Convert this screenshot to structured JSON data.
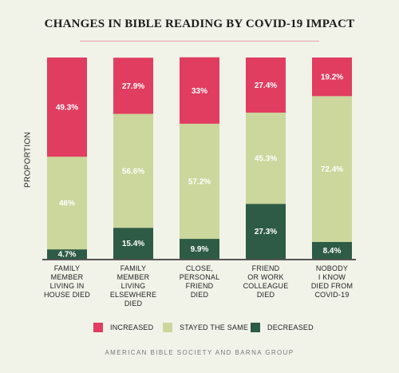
{
  "colors": {
    "increased": "#e13d60",
    "stayed": "#cbd79c",
    "decreased": "#2e5b45",
    "baseline": "#555555"
  },
  "chart_data": {
    "type": "bar",
    "stacked": true,
    "title": "CHANGES IN BIBLE READING BY COVID-19 IMPACT",
    "ylabel": "PROPORTION",
    "xlabel": "",
    "ylim": [
      0,
      100
    ],
    "grid": false,
    "legend_position": "bottom",
    "categories": [
      "FAMILY\nMEMBER\nLIVING IN\nHOUSE DIED",
      "FAMILY\nMEMBER\nLIVING\nELSEWHERE\nDIED",
      "CLOSE,\nPERSONAL\nFRIEND\nDIED",
      "FRIEND\nOR WORK\nCOLLEAGUE\nDIED",
      "NOBODY\nI KNOW\nDIED FROM\nCOVID-19"
    ],
    "series": [
      {
        "name": "DECREASED",
        "color_key": "decreased",
        "values": [
          4.7,
          15.4,
          9.9,
          27.3,
          8.4
        ],
        "labels": [
          "4.7%",
          "15.4%",
          "9.9%",
          "27.3%",
          "8.4%"
        ]
      },
      {
        "name": "STAYED THE SAME",
        "color_key": "stayed",
        "values": [
          46,
          56.6,
          57.2,
          45.3,
          72.4
        ],
        "labels": [
          "46%",
          "56.6%",
          "57.2%",
          "45.3%",
          "72.4%"
        ]
      },
      {
        "name": "INCREASED",
        "color_key": "increased",
        "values": [
          49.3,
          27.9,
          33,
          27.4,
          19.2
        ],
        "labels": [
          "49.3%",
          "27.9%",
          "33%",
          "27.4%",
          "19.2%"
        ]
      }
    ],
    "legend_order": [
      "INCREASED",
      "STAYED THE SAME",
      "DECREASED"
    ]
  },
  "source": "AMERICAN BIBLE SOCIETY AND BARNA GROUP"
}
